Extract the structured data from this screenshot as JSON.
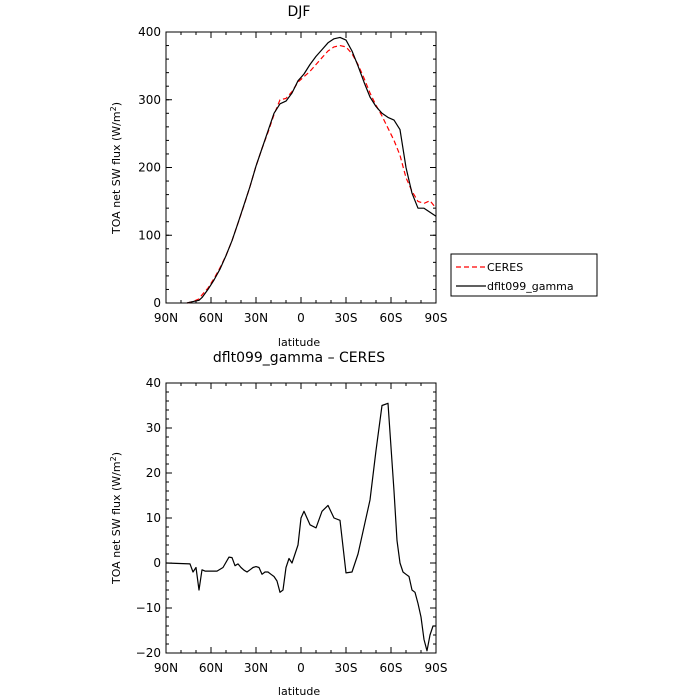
{
  "chart_data": [
    {
      "type": "line",
      "title": "DJF",
      "xlabel": "latitude",
      "ylabel": "TOA net SW flux (W/m²)",
      "ylabel_main": "TOA net SW flux (W/m",
      "ylabel_sup": "2",
      "ylabel_end": ")",
      "xlim": [
        90,
        -90
      ],
      "ylim": [
        0,
        400
      ],
      "xticks": [
        90,
        60,
        30,
        0,
        -30,
        -60,
        -90
      ],
      "xticklabels": [
        "90N",
        "60N",
        "30N",
        "0",
        "30S",
        "60S",
        "90S"
      ],
      "yticks": [
        0,
        100,
        200,
        300,
        400
      ],
      "yticklabels": [
        "0",
        "100",
        "200",
        "300",
        "400"
      ],
      "legend_placement": "outside-right",
      "series": [
        {
          "name": "CERES",
          "color": "#ff0000",
          "dash": "dashed",
          "x": [
            76,
            72,
            68,
            66,
            62,
            58,
            54,
            50,
            46,
            42,
            38,
            34,
            30,
            26,
            22,
            18,
            14,
            10,
            6,
            2,
            -2,
            -6,
            -10,
            -14,
            -18,
            -22,
            -26,
            -30,
            -34,
            -38,
            -42,
            -46,
            -50,
            -54,
            -58,
            -62,
            -66,
            -70,
            -74,
            -78,
            -82,
            -86,
            -90
          ],
          "y": [
            0,
            2,
            6,
            12,
            22,
            36,
            52,
            70,
            92,
            118,
            144,
            172,
            202,
            228,
            252,
            278,
            300,
            302,
            312,
            326,
            334,
            342,
            352,
            362,
            372,
            378,
            380,
            378,
            368,
            352,
            332,
            310,
            292,
            276,
            258,
            240,
            218,
            185,
            165,
            150,
            147,
            151,
            140
          ]
        },
        {
          "name": "dflt099_gamma",
          "color": "#000000",
          "dash": "solid",
          "x": [
            76,
            72,
            68,
            66,
            62,
            58,
            54,
            50,
            46,
            42,
            38,
            34,
            30,
            26,
            22,
            18,
            14,
            10,
            6,
            2,
            -2,
            -6,
            -10,
            -14,
            -18,
            -22,
            -26,
            -30,
            -34,
            -38,
            -42,
            -46,
            -50,
            -54,
            -58,
            -62,
            -66,
            -70,
            -74,
            -78,
            -82,
            -86,
            -90
          ],
          "y": [
            0,
            2,
            4,
            8,
            20,
            34,
            50,
            70,
            92,
            118,
            145,
            172,
            202,
            228,
            254,
            280,
            294,
            298,
            310,
            328,
            338,
            352,
            364,
            374,
            384,
            390,
            392,
            388,
            372,
            350,
            326,
            304,
            290,
            280,
            274,
            270,
            256,
            200,
            162,
            140,
            140,
            134,
            128
          ]
        }
      ]
    },
    {
      "type": "line",
      "title": "dflt099_gamma – CERES",
      "xlabel": "latitude",
      "ylabel": "TOA net SW flux (W/m²)",
      "ylabel_main": "TOA net SW flux (W/m",
      "ylabel_sup": "2",
      "ylabel_end": ")",
      "xlim": [
        90,
        -90
      ],
      "ylim": [
        -20,
        40
      ],
      "xticks": [
        90,
        60,
        30,
        0,
        -30,
        -60,
        -90
      ],
      "xticklabels": [
        "90N",
        "60N",
        "30N",
        "0",
        "30S",
        "60S",
        "90S"
      ],
      "yticks": [
        -20,
        -10,
        0,
        10,
        20,
        30,
        40
      ],
      "yticklabels": [
        "−20",
        "−10",
        "0",
        "10",
        "20",
        "30",
        "40"
      ],
      "series": [
        {
          "name": "",
          "color": "#000000",
          "dash": "solid",
          "x": [
            90,
            74,
            72,
            70,
            68,
            66,
            64,
            60,
            56,
            52,
            48,
            46,
            44,
            42,
            40,
            38,
            36,
            34,
            32,
            30,
            28,
            26,
            24,
            22,
            20,
            18,
            16,
            14,
            12,
            10,
            8,
            6,
            4,
            2,
            0,
            -2,
            -6,
            -10,
            -14,
            -18,
            -22,
            -26,
            -30,
            -34,
            -38,
            -42,
            -46,
            -50,
            -54,
            -58,
            -62,
            -64,
            -66,
            -68,
            -70,
            -72,
            -74,
            -76,
            -78,
            -80,
            -82,
            -84,
            -86,
            -88,
            -90
          ],
          "y": [
            0,
            -0.2,
            -2,
            -1,
            -6,
            -1.5,
            -1.8,
            -1.8,
            -1.8,
            -1,
            1.3,
            1.2,
            -0.6,
            -0.2,
            -1,
            -1.6,
            -2,
            -1.5,
            -1,
            -0.8,
            -1,
            -2.5,
            -2,
            -2,
            -2.5,
            -3,
            -4,
            -6.5,
            -6,
            -1,
            1,
            0,
            2,
            4,
            10,
            11.5,
            8.5,
            7.8,
            11.5,
            12.8,
            10,
            9.5,
            -2.2,
            -2,
            2,
            8,
            14,
            25,
            35,
            35.5,
            16,
            5,
            0,
            -2,
            -2.5,
            -3,
            -6,
            -6.5,
            -9,
            -12,
            -17,
            -19.5,
            -16,
            -14,
            -14
          ]
        }
      ]
    }
  ],
  "legend": {
    "entries": [
      {
        "label": "CERES",
        "color": "#ff0000",
        "dash": "dashed"
      },
      {
        "label": "dflt099_gamma",
        "color": "#000000",
        "dash": "solid"
      }
    ]
  }
}
